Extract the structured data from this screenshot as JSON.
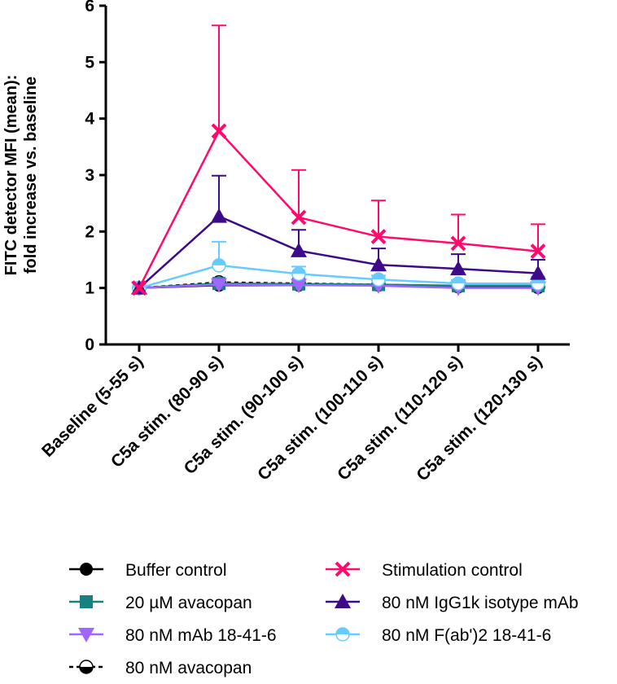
{
  "chart_data": {
    "type": "line",
    "title": "",
    "xlabel": "",
    "ylabel": [
      "FITC detector MFI (mean):",
      "fold increase vs. baseline"
    ],
    "ylim": [
      0,
      6
    ],
    "yticks": [
      "0",
      "1",
      "2",
      "3",
      "4",
      "5",
      "6"
    ],
    "categories": [
      "Baseline (5-55 s)",
      "C5a stim. (80-90 s)",
      "C5a stim. (90-100 s)",
      "C5a stim. (100-110 s)",
      "C5a stim. (110-120 s)",
      "C5a stim. (120-130 s)"
    ],
    "legend_position": "bottom",
    "series": [
      {
        "name": "Stimulation control",
        "color": "#ff0a6c",
        "marker": "x",
        "values": [
          1.0,
          3.78,
          2.25,
          1.91,
          1.79,
          1.65
        ],
        "err_upper": [
          1.0,
          5.65,
          3.09,
          2.55,
          2.3,
          2.13
        ]
      },
      {
        "name": "80 nM IgG1k isotype mAb",
        "color": "#3d0a8a",
        "marker": "triangle-up",
        "values": [
          1.0,
          2.27,
          1.66,
          1.41,
          1.34,
          1.26
        ],
        "err_upper": [
          1.0,
          2.99,
          2.03,
          1.7,
          1.6,
          1.5
        ]
      },
      {
        "name": "80 nM F(ab')2 18-41-6",
        "color": "#66ccff",
        "marker": "half-circle",
        "values": [
          1.0,
          1.4,
          1.25,
          1.15,
          1.08,
          1.08
        ],
        "err_upper": [
          1.0,
          1.82,
          1.38,
          1.22,
          1.14,
          1.2
        ]
      },
      {
        "name": "80 nM mAb 18-41-6",
        "color": "#a066ff",
        "marker": "triangle-down",
        "values": [
          1.0,
          1.06,
          1.05,
          1.04,
          1.0,
          1.0
        ]
      },
      {
        "name": "20 µM avacopan",
        "color": "#178080",
        "marker": "square",
        "values": [
          1.0,
          1.08,
          1.07,
          1.06,
          1.04,
          1.04
        ]
      },
      {
        "name": "80 nM avacopan",
        "color": "#000000",
        "marker": "half-circle-dashed",
        "values": [
          1.0,
          1.1,
          1.08,
          1.06,
          1.03,
          1.02
        ]
      },
      {
        "name": "Buffer control",
        "color": "#000000",
        "marker": "circle",
        "values": [
          1.0,
          1.05,
          1.05,
          1.05,
          1.02,
          1.01
        ]
      }
    ],
    "legend_order": [
      "Buffer control",
      "Stimulation control",
      "20 µM avacopan",
      "80 nM IgG1k isotype mAb",
      "80 nM mAb 18-41-6",
      "80 nM F(ab')2 18-41-6",
      "80 nM avacopan"
    ]
  }
}
